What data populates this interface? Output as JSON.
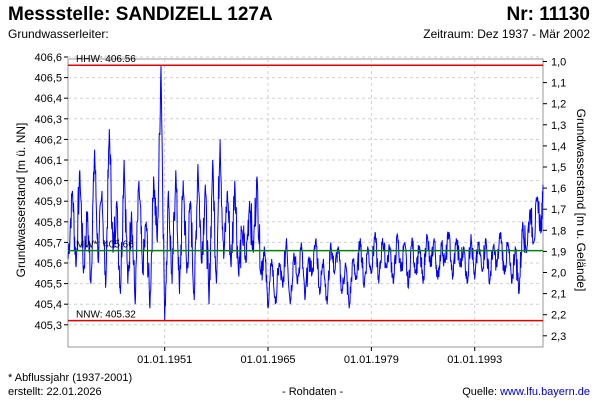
{
  "header": {
    "title": "Messstelle: SANDIZELL 127A",
    "number": "Nr: 11130",
    "aquifer": "Grundwasserleiter:",
    "period": "Zeitraum: Dez 1937 - Mär 2002"
  },
  "footer": {
    "footnote": "* Abflussjahr (1937-2001)",
    "created": "erstellt:  22.01.2026",
    "raw": "- Rohdaten -",
    "source_label": "Quelle: ",
    "source_link": "www.lfu.bayern.de"
  },
  "chart_data": {
    "type": "line",
    "ylabel": "Grundwasserstand [m ü. NN]",
    "y2label": "Grundwasserstand [m u. Gelände]",
    "ylim": [
      405.28,
      406.62
    ],
    "yticks": [
      "406,6",
      "406,5",
      "406,4",
      "406,3",
      "406,2",
      "406,1",
      "406,0",
      "405,9",
      "405,8",
      "405,7",
      "405,6",
      "405,5",
      "405,4",
      "405,3"
    ],
    "y2ticks": [
      "1,0",
      "1,1",
      "1,2",
      "1,3",
      "1,4",
      "1,5",
      "1,6",
      "1,7",
      "1,8",
      "1,9",
      "2,0",
      "2,1",
      "2,2",
      "2,3"
    ],
    "xlim": [
      1937.9,
      2002.25
    ],
    "xticks": [
      "01.01.1951",
      "01.01.1965",
      "01.01.1979",
      "01.01.1993"
    ],
    "grid": true,
    "reference_lines": [
      {
        "label": "HHW: 406.56",
        "value": 406.56,
        "color": "#e00000"
      },
      {
        "label": "MW*: 405.66",
        "value": 405.66,
        "color": "#008000"
      },
      {
        "label": "NNW: 405.32",
        "value": 405.32,
        "color": "#e00000"
      }
    ],
    "series": [
      {
        "color": "#0000ff",
        "x": [
          1937.9,
          1938.5,
          1939.0,
          1939.5,
          1940.0,
          1940.5,
          1941.0,
          1941.5,
          1942.0,
          1942.5,
          1943.0,
          1943.5,
          1944.0,
          1944.5,
          1945.0,
          1945.5,
          1946.0,
          1946.5,
          1947.0,
          1947.5,
          1948.0,
          1948.5,
          1949.0,
          1949.5,
          1950.0,
          1950.5,
          1951.0,
          1951.5,
          1952.0,
          1952.5,
          1953.0,
          1953.5,
          1954.0,
          1954.5,
          1955.0,
          1955.5,
          1956.0,
          1956.5,
          1957.0,
          1957.5,
          1958.0,
          1958.5,
          1959.0,
          1959.5,
          1960.0,
          1960.5,
          1961.0,
          1961.5,
          1962.0,
          1962.5,
          1963.0,
          1963.5,
          1964.0,
          1964.5,
          1965.0,
          1965.5,
          1966.0,
          1966.5,
          1967.0,
          1967.5,
          1968.0,
          1968.5,
          1969.0,
          1969.5,
          1970.0,
          1970.5,
          1971.0,
          1971.5,
          1972.0,
          1972.5,
          1973.0,
          1973.5,
          1974.0,
          1974.5,
          1975.0,
          1975.5,
          1976.0,
          1976.5,
          1977.0,
          1977.5,
          1978.0,
          1978.5,
          1979.0,
          1979.5,
          1980.0,
          1980.5,
          1981.0,
          1981.5,
          1982.0,
          1982.5,
          1983.0,
          1983.5,
          1984.0,
          1984.5,
          1985.0,
          1985.5,
          1986.0,
          1986.5,
          1987.0,
          1987.5,
          1988.0,
          1988.5,
          1989.0,
          1989.5,
          1990.0,
          1990.5,
          1991.0,
          1991.5,
          1992.0,
          1992.5,
          1993.0,
          1993.5,
          1994.0,
          1994.5,
          1995.0,
          1995.5,
          1996.0,
          1996.5,
          1997.0,
          1997.5,
          1998.0,
          1998.5,
          1999.0,
          1999.5,
          2000.0,
          2000.5,
          2001.0,
          2001.5,
          2002.0,
          2002.25
        ],
        "y": [
          405.62,
          405.95,
          405.58,
          406.05,
          405.55,
          405.85,
          405.5,
          406.15,
          405.6,
          405.95,
          405.48,
          406.25,
          405.65,
          405.9,
          405.45,
          406.1,
          405.5,
          405.85,
          405.4,
          406.0,
          405.55,
          405.8,
          405.38,
          406.02,
          405.7,
          406.56,
          405.32,
          405.95,
          405.5,
          406.05,
          405.45,
          406.0,
          405.55,
          405.9,
          405.42,
          406.08,
          405.6,
          405.98,
          405.4,
          406.1,
          405.5,
          406.2,
          405.62,
          405.95,
          405.58,
          406.0,
          405.55,
          405.75,
          405.6,
          405.9,
          405.65,
          406.02,
          405.55,
          405.68,
          405.38,
          405.62,
          405.4,
          405.6,
          405.48,
          405.72,
          405.4,
          405.65,
          405.5,
          405.7,
          405.42,
          405.62,
          405.55,
          405.72,
          405.45,
          405.62,
          405.4,
          405.7,
          405.55,
          405.68,
          405.45,
          405.6,
          405.38,
          405.62,
          405.52,
          405.72,
          405.48,
          405.68,
          405.55,
          405.75,
          405.5,
          405.72,
          405.58,
          405.68,
          405.5,
          405.74,
          405.56,
          405.7,
          405.48,
          405.72,
          405.55,
          405.68,
          405.5,
          405.74,
          405.58,
          405.72,
          405.52,
          405.7,
          405.6,
          405.75,
          405.52,
          405.72,
          405.58,
          405.68,
          405.5,
          405.74,
          405.52,
          405.7,
          405.56,
          405.72,
          405.5,
          405.68,
          405.58,
          405.75,
          405.55,
          405.7,
          405.5,
          405.68,
          405.45,
          405.8,
          405.65,
          405.86,
          405.7,
          405.92,
          405.75,
          405.98
        ]
      }
    ]
  }
}
